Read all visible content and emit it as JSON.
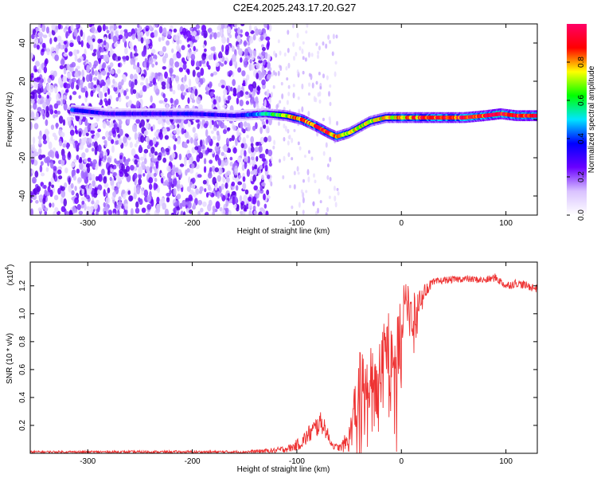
{
  "title": "C2E4.2025.243.17.20.G27",
  "chart_data": [
    {
      "type": "heatmap",
      "name": "spectrogram",
      "xlabel": "Height of straight line (km)",
      "ylabel": "Frequency (Hz)",
      "xlim": [
        -355,
        130
      ],
      "ylim": [
        -50,
        50
      ],
      "x_ticks": [
        -300,
        -200,
        -100,
        0,
        100
      ],
      "y_ticks": [
        -40,
        -20,
        0,
        20,
        40
      ],
      "colorbar": {
        "label": "Normalized spectral amplitude",
        "range": [
          0,
          1
        ],
        "ticks": [
          0.0,
          0.2,
          0.4,
          0.6,
          0.8
        ],
        "colors": [
          "#ffffff",
          "#d9c2ff",
          "#6a00ff",
          "#0000ff",
          "#00e5ff",
          "#00ff00",
          "#ffff00",
          "#ff0000",
          "#ff0066"
        ]
      },
      "signal_track": {
        "description_points_x": [
          -315,
          -280,
          -200,
          -160,
          -130,
          -110,
          -95,
          -80,
          -70,
          -62,
          -50,
          -40,
          -30,
          -15,
          0,
          20,
          60,
          80,
          95,
          110,
          130
        ],
        "frequency_hz": [
          5,
          3,
          3,
          2,
          3,
          2,
          0,
          -4,
          -7,
          -9,
          -7,
          -4,
          -1,
          1,
          1,
          1,
          1,
          2,
          3,
          2,
          2
        ],
        "amplitude": [
          0.4,
          0.3,
          0.35,
          0.3,
          0.5,
          0.7,
          0.85,
          0.85,
          0.85,
          0.8,
          0.75,
          0.7,
          0.7,
          0.75,
          0.8,
          0.85,
          0.9,
          0.9,
          0.95,
          0.9,
          0.9
        ]
      },
      "noise_region_x": [
        -355,
        -125
      ],
      "sparse_noise_region_x": [
        -125,
        -60
      ]
    },
    {
      "type": "line",
      "name": "snr",
      "xlabel": "Height of straight line (km)",
      "ylabel": "SNR (10 * v/v)",
      "y_scale_label": "(x10",
      "y_scale_exponent": "4",
      "xlim": [
        -355,
        130
      ],
      "ylim": [
        0,
        1.37
      ],
      "x_ticks": [
        -300,
        -200,
        -100,
        0,
        100
      ],
      "y_ticks": [
        0.2,
        0.4,
        0.6,
        0.8,
        1.0,
        1.2
      ],
      "color": "#ee3333",
      "envelope": {
        "x": [
          -355,
          -150,
          -120,
          -105,
          -95,
          -88,
          -82,
          -78,
          -74,
          -70,
          -65,
          -58,
          -50,
          -45,
          -40,
          -35,
          -30,
          -25,
          -20,
          -15,
          -10,
          -5,
          0,
          3,
          8,
          15,
          20,
          30,
          40,
          60,
          80,
          90,
          100,
          110,
          130
        ],
        "y": [
          0.01,
          0.01,
          0.02,
          0.04,
          0.08,
          0.14,
          0.18,
          0.22,
          0.2,
          0.12,
          0.05,
          0.04,
          0.1,
          0.3,
          0.5,
          0.5,
          0.55,
          0.6,
          0.7,
          0.75,
          0.8,
          0.7,
          0.9,
          1.2,
          0.95,
          1.05,
          1.15,
          1.22,
          1.24,
          1.25,
          1.24,
          1.26,
          1.2,
          1.22,
          1.18
        ],
        "jitter": [
          0.008,
          0.01,
          0.02,
          0.03,
          0.05,
          0.07,
          0.08,
          0.08,
          0.07,
          0.05,
          0.02,
          0.03,
          0.1,
          0.2,
          0.25,
          0.2,
          0.2,
          0.22,
          0.2,
          0.2,
          0.25,
          0.3,
          0.25,
          0.15,
          0.2,
          0.1,
          0.06,
          0.03,
          0.025,
          0.025,
          0.025,
          0.03,
          0.03,
          0.03,
          0.03
        ]
      }
    }
  ]
}
